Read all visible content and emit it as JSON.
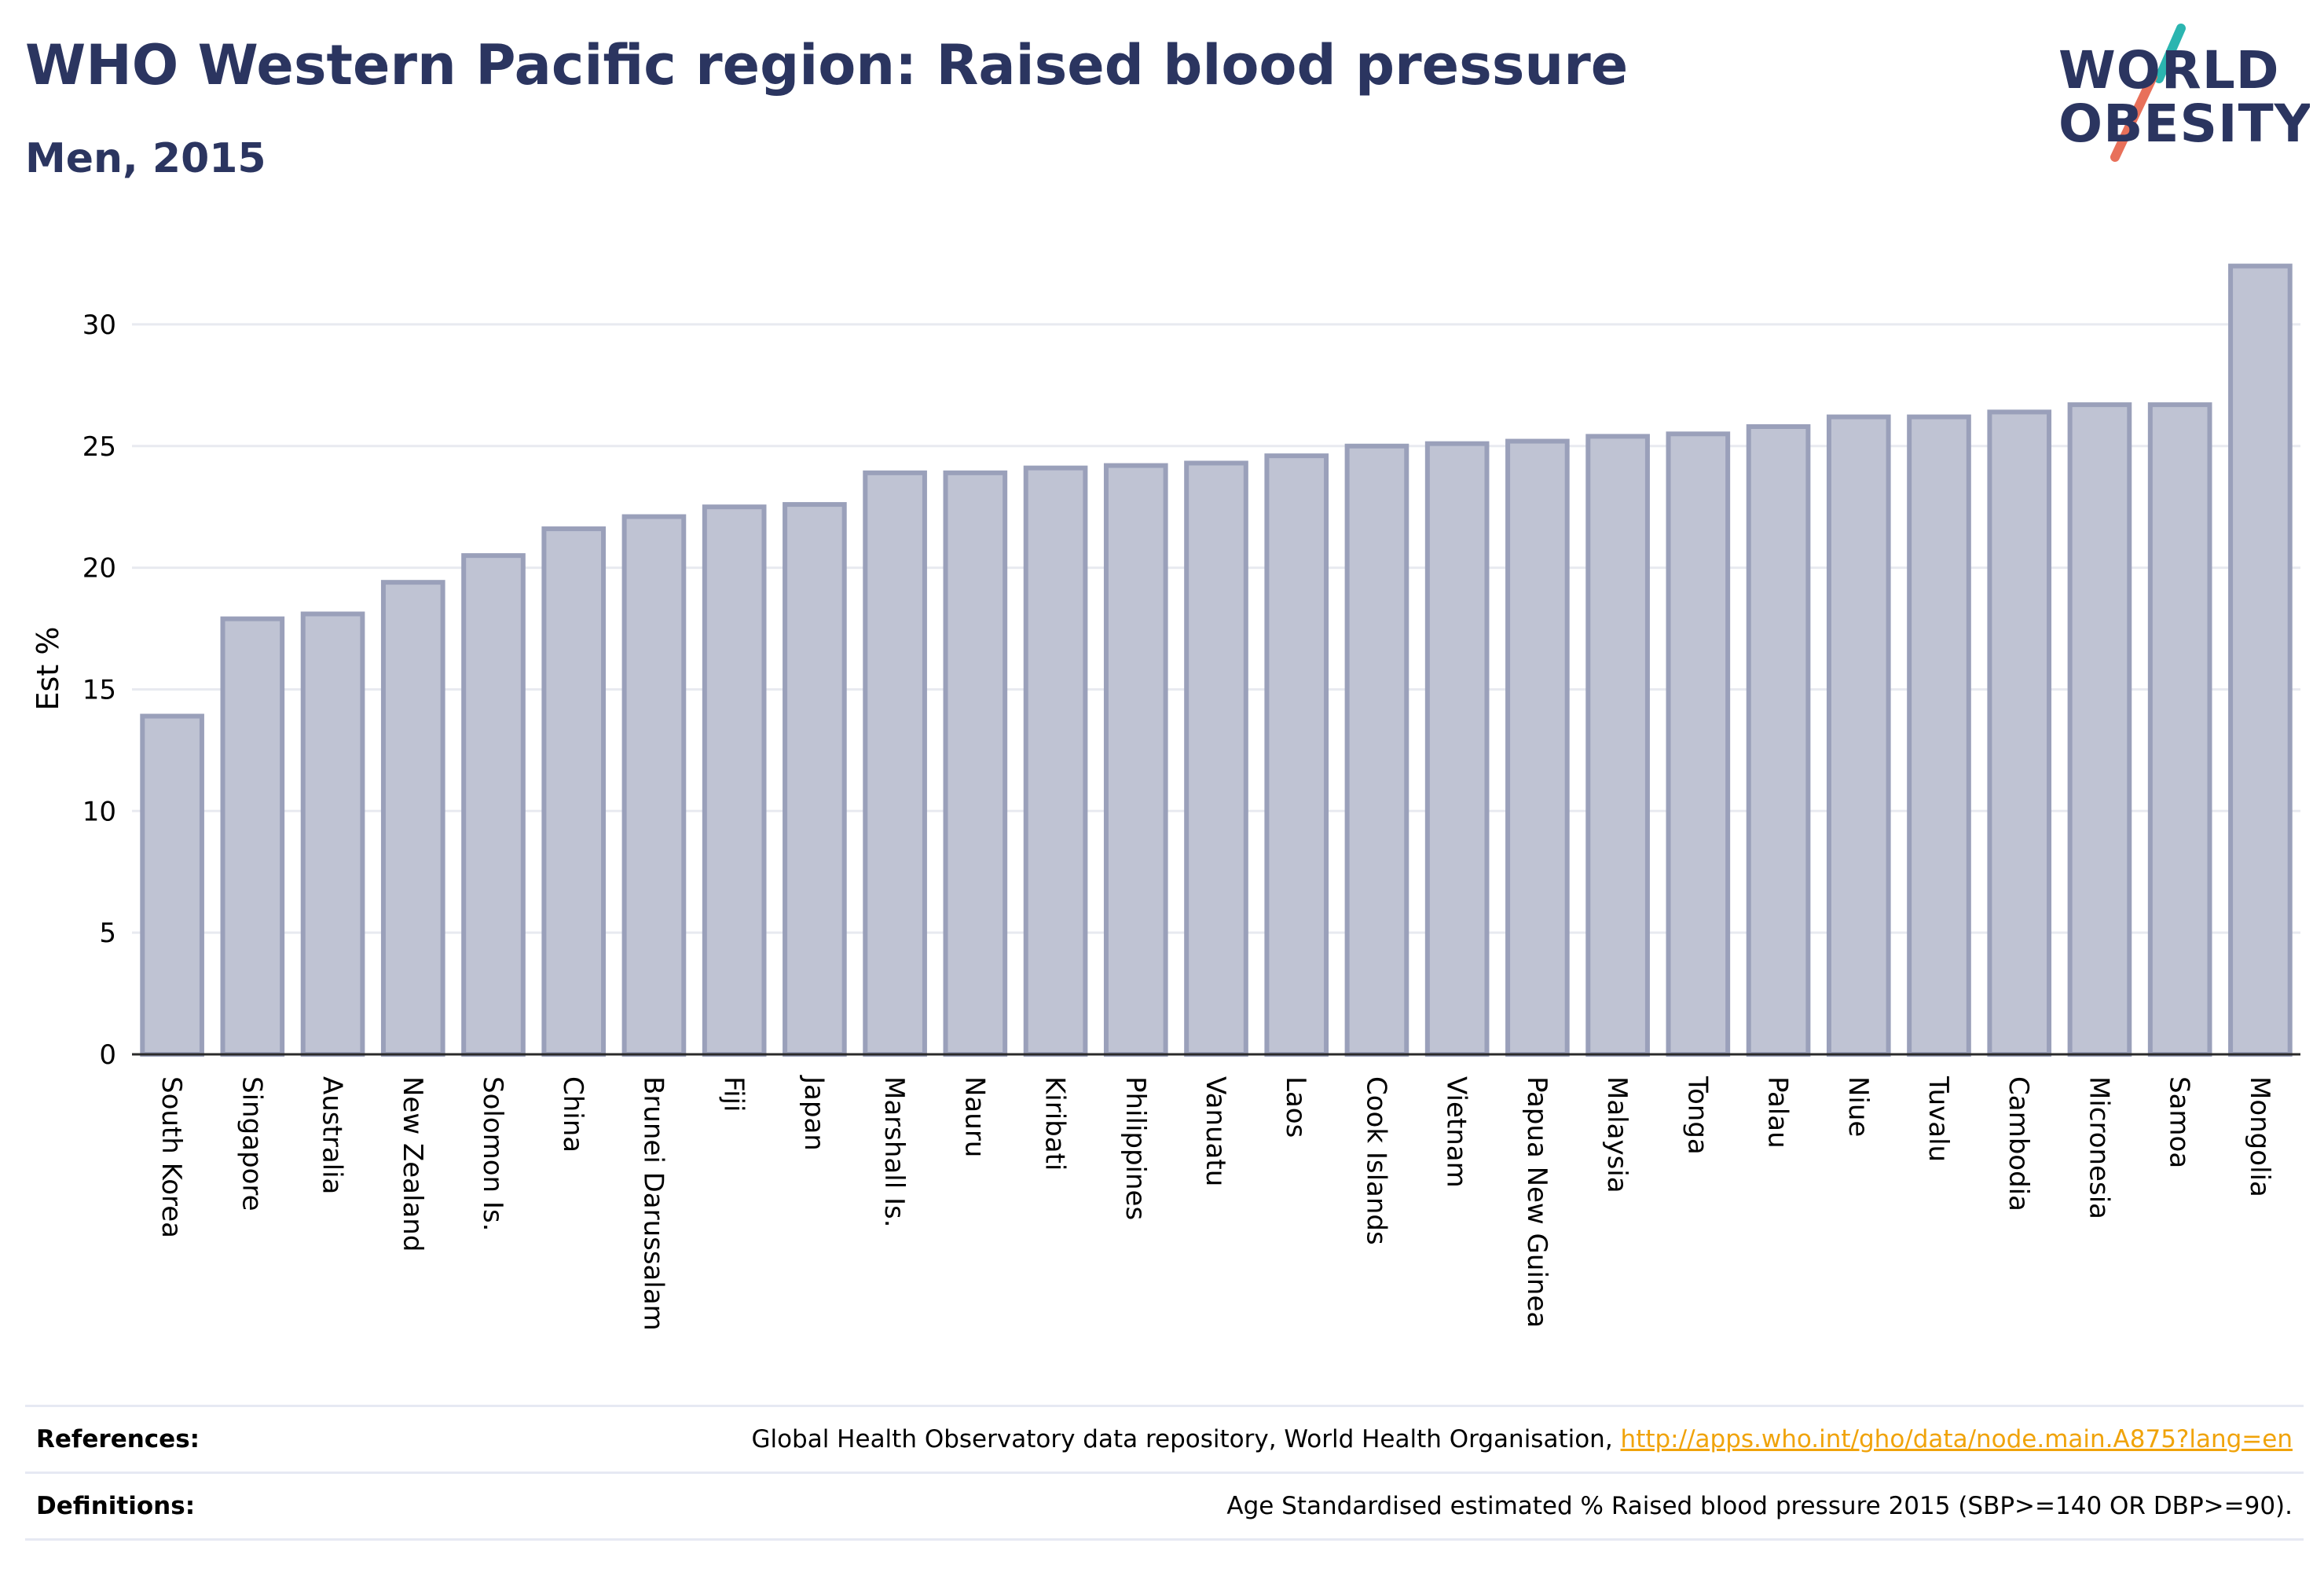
{
  "header": {
    "title": "WHO Western Pacific region: Raised blood pressure",
    "subtitle": "Men, 2015"
  },
  "logo": {
    "line1": "WORLD",
    "line2": "OBESITY"
  },
  "colors": {
    "title": "#2b3560",
    "bar_fill": "#bfc3d3",
    "bar_stroke": "#9aa0ba",
    "grid": "#e8eaf0",
    "link": "#f0a30a",
    "logo_teal": "#2bb5b0",
    "logo_coral": "#e8705a"
  },
  "chart_data": {
    "type": "bar",
    "ylabel": "Est %",
    "ylim": [
      0,
      33
    ],
    "yticks": [
      0,
      5,
      10,
      15,
      20,
      25,
      30
    ],
    "grid": true,
    "categories": [
      "South Korea",
      "Singapore",
      "Australia",
      "New Zealand",
      "Solomon Is.",
      "China",
      "Brunei Darussalam",
      "Fiji",
      "Japan",
      "Marshall Is.",
      "Nauru",
      "Kiribati",
      "Philippines",
      "Vanuatu",
      "Laos",
      "Cook Islands",
      "Vietnam",
      "Papua New Guinea",
      "Malaysia",
      "Tonga",
      "Palau",
      "Niue",
      "Tuvalu",
      "Cambodia",
      "Micronesia",
      "Samoa",
      "Mongolia"
    ],
    "values": [
      13.9,
      17.9,
      18.1,
      19.4,
      20.5,
      21.6,
      22.1,
      22.5,
      22.6,
      23.9,
      23.9,
      24.1,
      24.2,
      24.3,
      24.6,
      25.0,
      25.1,
      25.2,
      25.4,
      25.5,
      25.8,
      26.2,
      26.2,
      26.4,
      26.7,
      26.7,
      32.4
    ]
  },
  "footer": {
    "references_label": "References:",
    "references_text": "Global Health Observatory data repository, World Health Organisation, ",
    "references_link": "http://apps.who.int/gho/data/node.main.A875?lang=en",
    "definitions_label": "Definitions:",
    "definitions_text": "Age Standardised estimated % Raised blood pressure 2015 (SBP>=140 OR DBP>=90)."
  }
}
